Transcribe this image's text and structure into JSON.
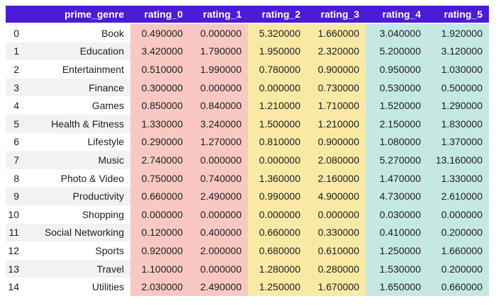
{
  "colors": {
    "header_bg": "#4B1BD6",
    "header_text": "#FFFFFF",
    "band_pink": "#F9C8C3",
    "band_yellow": "#F8E9A4",
    "band_teal": "#C6E8E3",
    "stripe": "#F2F2F4",
    "row_bg": "#FFFFFF",
    "cell_text": "#1D1D1F"
  },
  "chart_data": {
    "type": "table",
    "index_header": "",
    "columns": [
      "prime_genre",
      "rating_0",
      "rating_1",
      "rating_2",
      "rating_3",
      "rating_4",
      "rating_5"
    ],
    "column_bands": {
      "rating_0": "pink",
      "rating_1": "pink",
      "rating_2": "yellow",
      "rating_3": "yellow",
      "rating_4": "teal",
      "rating_5": "teal"
    },
    "rows": [
      {
        "index": "0",
        "prime_genre": "Book",
        "values": [
          "0.490000",
          "0.000000",
          "5.320000",
          "1.660000",
          "3.040000",
          "1.920000"
        ]
      },
      {
        "index": "1",
        "prime_genre": "Education",
        "values": [
          "3.420000",
          "1.790000",
          "1.950000",
          "2.320000",
          "5.200000",
          "3.120000"
        ]
      },
      {
        "index": "2",
        "prime_genre": "Entertainment",
        "values": [
          "0.510000",
          "1.990000",
          "0.780000",
          "0.900000",
          "0.950000",
          "1.030000"
        ]
      },
      {
        "index": "3",
        "prime_genre": "Finance",
        "values": [
          "0.300000",
          "0.000000",
          "0.000000",
          "0.730000",
          "0.530000",
          "0.500000"
        ]
      },
      {
        "index": "4",
        "prime_genre": "Games",
        "values": [
          "0.850000",
          "0.840000",
          "1.210000",
          "1.710000",
          "1.520000",
          "1.290000"
        ]
      },
      {
        "index": "5",
        "prime_genre": "Health & Fitness",
        "values": [
          "1.330000",
          "3.240000",
          "1.500000",
          "1.210000",
          "2.150000",
          "1.830000"
        ]
      },
      {
        "index": "6",
        "prime_genre": "Lifestyle",
        "values": [
          "0.290000",
          "1.270000",
          "0.810000",
          "0.900000",
          "1.080000",
          "1.370000"
        ]
      },
      {
        "index": "7",
        "prime_genre": "Music",
        "values": [
          "2.740000",
          "0.000000",
          "0.000000",
          "2.080000",
          "5.270000",
          "13.160000"
        ]
      },
      {
        "index": "8",
        "prime_genre": "Photo & Video",
        "values": [
          "0.750000",
          "0.740000",
          "1.360000",
          "2.160000",
          "1.470000",
          "1.330000"
        ]
      },
      {
        "index": "9",
        "prime_genre": "Productivity",
        "values": [
          "0.660000",
          "2.490000",
          "0.990000",
          "4.900000",
          "4.730000",
          "2.610000"
        ]
      },
      {
        "index": "10",
        "prime_genre": "Shopping",
        "values": [
          "0.000000",
          "0.000000",
          "0.000000",
          "0.000000",
          "0.030000",
          "0.000000"
        ]
      },
      {
        "index": "11",
        "prime_genre": "Social Networking",
        "values": [
          "0.120000",
          "0.400000",
          "0.660000",
          "0.330000",
          "0.410000",
          "0.200000"
        ]
      },
      {
        "index": "12",
        "prime_genre": "Sports",
        "values": [
          "0.920000",
          "2.000000",
          "0.680000",
          "0.610000",
          "1.250000",
          "1.660000"
        ]
      },
      {
        "index": "13",
        "prime_genre": "Travel",
        "values": [
          "1.100000",
          "0.000000",
          "1.280000",
          "0.280000",
          "1.530000",
          "0.200000"
        ]
      },
      {
        "index": "14",
        "prime_genre": "Utilities",
        "values": [
          "2.030000",
          "2.490000",
          "1.250000",
          "1.670000",
          "1.650000",
          "0.660000"
        ]
      }
    ]
  }
}
